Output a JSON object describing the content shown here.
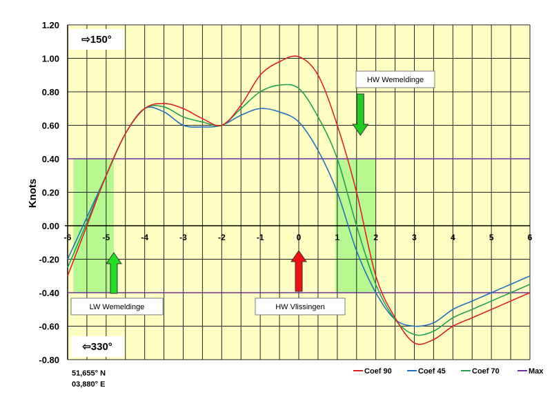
{
  "chart_data": {
    "type": "line",
    "title": "",
    "xlabel": "",
    "ylabel": "Knots",
    "xlim": [
      -6,
      6
    ],
    "ylim": [
      -0.8,
      1.2
    ],
    "x_ticks": [
      "-6",
      "-5",
      "-4",
      "-3",
      "-2",
      "-1",
      "0",
      "1",
      "2",
      "3",
      "4",
      "5",
      "6"
    ],
    "y_ticks": [
      "1.20",
      "1.00",
      "0.80",
      "0.60",
      "0.40",
      "0.20",
      "0.00",
      "-0.20",
      "-0.40",
      "-0.60",
      "-0.80"
    ],
    "grid": true,
    "legend_position": "bottom-right",
    "background_color": "#ffffc4",
    "x": [
      -6,
      -5.5,
      -5,
      -4.5,
      -4,
      -3.5,
      -3,
      -2.5,
      -2,
      -1.5,
      -1,
      -0.5,
      0,
      0.5,
      1,
      1.5,
      2,
      2.5,
      3,
      3.5,
      4,
      4.5,
      5,
      5.5,
      6
    ],
    "series": [
      {
        "name": "Coef 90",
        "color": "#e02020",
        "values": [
          -0.3,
          0.0,
          0.3,
          0.55,
          0.7,
          0.73,
          0.7,
          0.64,
          0.6,
          0.72,
          0.9,
          0.98,
          1.01,
          0.9,
          0.6,
          0.2,
          -0.3,
          -0.55,
          -0.7,
          -0.68,
          -0.6,
          -0.55,
          -0.5,
          -0.45,
          -0.4
        ]
      },
      {
        "name": "Coef 45",
        "color": "#2070c0",
        "values": [
          -0.2,
          0.05,
          0.3,
          0.55,
          0.7,
          0.68,
          0.6,
          0.59,
          0.6,
          0.66,
          0.7,
          0.68,
          0.62,
          0.45,
          0.2,
          -0.15,
          -0.4,
          -0.56,
          -0.6,
          -0.58,
          -0.5,
          -0.45,
          -0.4,
          -0.35,
          -0.3
        ]
      },
      {
        "name": "Coef 70",
        "color": "#20a050",
        "values": [
          -0.25,
          0.02,
          0.3,
          0.55,
          0.7,
          0.71,
          0.65,
          0.62,
          0.6,
          0.7,
          0.8,
          0.84,
          0.82,
          0.65,
          0.4,
          0.0,
          -0.35,
          -0.56,
          -0.65,
          -0.63,
          -0.55,
          -0.5,
          -0.45,
          -0.4,
          -0.35
        ]
      },
      {
        "name": "Max",
        "color": "#7030a0",
        "lines": [
          0.4,
          -0.4
        ]
      }
    ],
    "shaded_windows": [
      {
        "x": [
          -5.85,
          -4.8
        ],
        "y": [
          -0.4,
          0.4
        ],
        "color": "#b8f890"
      },
      {
        "x": [
          0.95,
          2.0
        ],
        "y": [
          -0.4,
          0.4
        ],
        "color": "#b8f890"
      }
    ],
    "annotations": [
      {
        "text": "HW Wemeldinge",
        "arrow_x": 1.6,
        "arrow_dir": "down",
        "arrow_color": "#22cc22"
      },
      {
        "text": "LW Wemeldinge",
        "arrow_x": -4.8,
        "arrow_dir": "up",
        "arrow_color": "#22dd22"
      },
      {
        "text": "HW Vlissingen",
        "arrow_x": 0,
        "arrow_dir": "up",
        "arrow_color": "#ee1111"
      }
    ],
    "direction_labels": {
      "flood": "⇨150°",
      "ebb": "⇦330°"
    },
    "location": {
      "lat": "51,655° N",
      "lon": "03,880° E"
    }
  }
}
